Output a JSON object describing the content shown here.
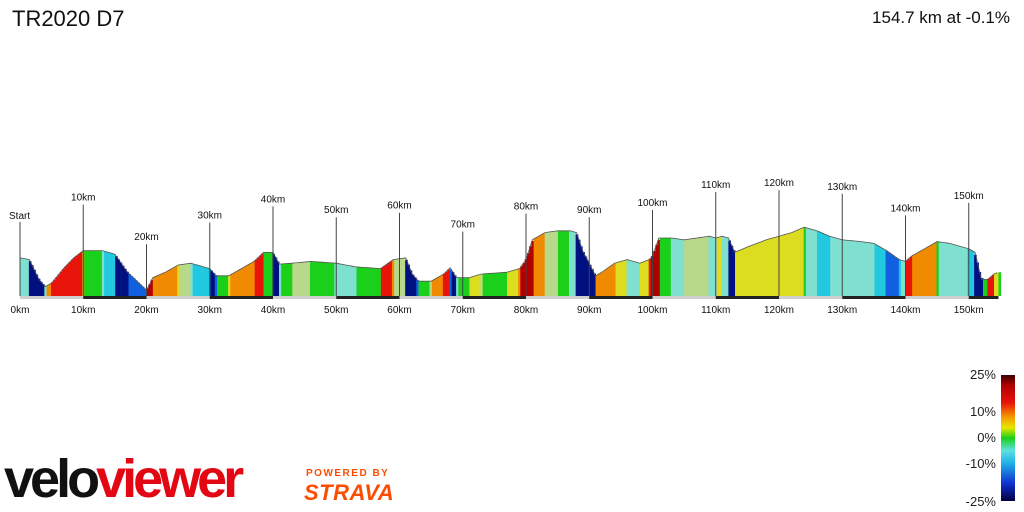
{
  "header": {
    "title": "TR2020 D7",
    "summary": "154.7 km at -0.1%"
  },
  "legend": {
    "labels": [
      "25%",
      "10%",
      "0%",
      "-10%",
      "-25%"
    ]
  },
  "branding": {
    "logo_text_part1": "velo",
    "logo_text_part2": "viewer",
    "powered_by": "POWERED BY",
    "strava": "STRAVA",
    "colors": {
      "velo": "#111111",
      "viewer": "#e30613",
      "strava": "#fc4c02"
    }
  },
  "chart_data": {
    "type": "area",
    "title": "TR2020 D7",
    "total_distance_km": 154.7,
    "average_gradient_pct": -0.1,
    "xlim": [
      0,
      154.7
    ],
    "x_ticks": [
      "0km",
      "10km",
      "20km",
      "30km",
      "40km",
      "50km",
      "60km",
      "70km",
      "80km",
      "90km",
      "100km",
      "110km",
      "120km",
      "130km",
      "140km",
      "150km"
    ],
    "markers": [
      {
        "label": "Start",
        "km": 0
      },
      {
        "label": "10km",
        "km": 10
      },
      {
        "label": "20km",
        "km": 20
      },
      {
        "label": "30km",
        "km": 30
      },
      {
        "label": "40km",
        "km": 40
      },
      {
        "label": "50km",
        "km": 50
      },
      {
        "label": "60km",
        "km": 60
      },
      {
        "label": "70km",
        "km": 70
      },
      {
        "label": "80km",
        "km": 80
      },
      {
        "label": "90km",
        "km": 90
      },
      {
        "label": "100km",
        "km": 100
      },
      {
        "label": "110km",
        "km": 110
      },
      {
        "label": "120km",
        "km": 120
      },
      {
        "label": "130km",
        "km": 130
      },
      {
        "label": "140km",
        "km": 140
      },
      {
        "label": "150km",
        "km": 150
      }
    ],
    "profile": {
      "x_km": [
        0,
        1.5,
        3,
        4,
        5,
        7,
        8.5,
        10,
        13,
        15,
        17,
        20,
        21,
        23,
        25,
        27,
        30,
        31,
        33,
        35,
        37,
        38.5,
        40,
        41,
        43,
        46,
        50,
        53,
        57,
        59,
        61,
        62,
        63,
        65,
        67,
        68,
        69,
        70,
        71,
        73,
        77,
        79,
        80,
        81,
        83,
        85,
        87,
        88,
        89,
        90,
        91,
        92,
        94,
        96,
        98,
        99.5,
        100,
        101,
        103,
        105,
        107,
        109,
        110,
        111,
        112,
        113,
        115,
        118,
        120,
        122,
        124,
        126,
        128,
        130,
        133,
        135,
        137,
        139,
        140,
        141,
        143,
        145,
        147,
        149,
        150,
        151,
        152,
        153,
        154,
        154.7
      ],
      "relative_height": [
        0.38,
        0.36,
        0.14,
        0.06,
        0.1,
        0.27,
        0.38,
        0.46,
        0.46,
        0.42,
        0.22,
        0.02,
        0.16,
        0.22,
        0.3,
        0.32,
        0.26,
        0.18,
        0.18,
        0.26,
        0.34,
        0.44,
        0.44,
        0.31,
        0.32,
        0.34,
        0.32,
        0.28,
        0.26,
        0.36,
        0.38,
        0.2,
        0.12,
        0.12,
        0.2,
        0.27,
        0.16,
        0.16,
        0.16,
        0.2,
        0.22,
        0.26,
        0.36,
        0.58,
        0.66,
        0.68,
        0.68,
        0.66,
        0.45,
        0.32,
        0.18,
        0.22,
        0.32,
        0.36,
        0.32,
        0.36,
        0.4,
        0.6,
        0.6,
        0.58,
        0.6,
        0.62,
        0.6,
        0.62,
        0.6,
        0.44,
        0.5,
        0.58,
        0.62,
        0.66,
        0.72,
        0.68,
        0.62,
        0.58,
        0.56,
        0.54,
        0.46,
        0.36,
        0.34,
        0.4,
        0.48,
        0.56,
        0.54,
        0.5,
        0.48,
        0.44,
        0.14,
        0.14,
        0.2,
        0.22
      ]
    }
  }
}
